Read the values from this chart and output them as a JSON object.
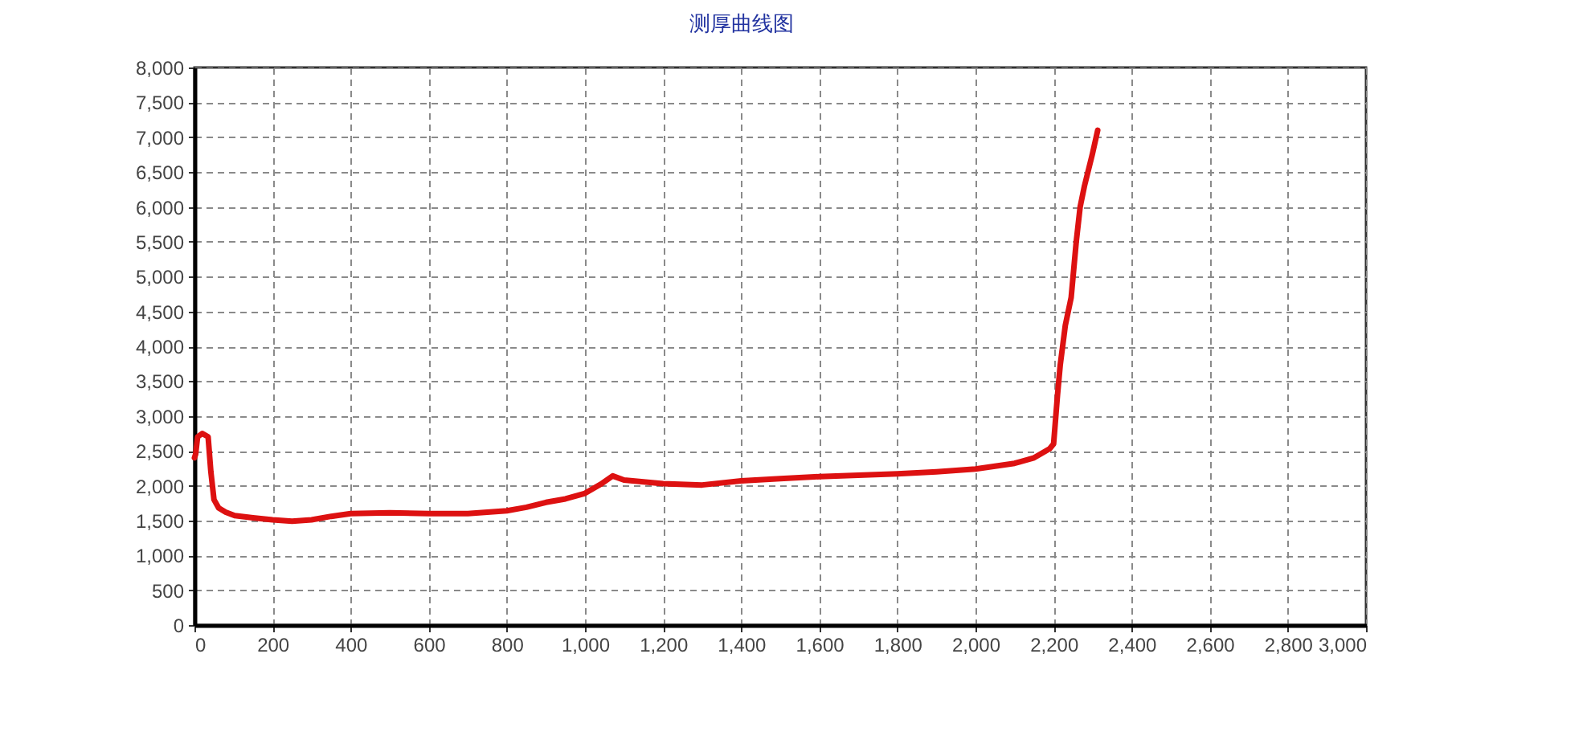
{
  "chart_data": {
    "type": "line",
    "title": "测厚曲线图",
    "x": [
      0,
      3,
      8,
      20,
      35,
      42,
      50,
      62,
      80,
      103,
      150,
      200,
      250,
      300,
      350,
      400,
      500,
      600,
      700,
      800,
      850,
      900,
      950,
      1000,
      1040,
      1071,
      1100,
      1200,
      1300,
      1400,
      1500,
      1600,
      1700,
      1800,
      1900,
      2000,
      2100,
      2150,
      2190,
      2200,
      2210,
      2217,
      2230,
      2245,
      2258,
      2268,
      2279,
      2299,
      2313
    ],
    "series": [
      {
        "color": "#dd1111",
        "values": [
          2400,
          2450,
          2700,
          2750,
          2700,
          2200,
          1800,
          1680,
          1620,
          1570,
          1540,
          1510,
          1490,
          1510,
          1560,
          1600,
          1610,
          1600,
          1600,
          1640,
          1690,
          1760,
          1810,
          1890,
          2020,
          2140,
          2080,
          2030,
          2010,
          2070,
          2100,
          2130,
          2150,
          2170,
          2200,
          2240,
          2320,
          2400,
          2530,
          2600,
          3300,
          3730,
          4300,
          4700,
          5500,
          6000,
          6300,
          6750,
          7100
        ]
      }
    ],
    "xlim": [
      0,
      3000
    ],
    "xticks": [
      0,
      200,
      400,
      600,
      800,
      {
        "value": 1000,
        "label": "1,000"
      },
      {
        "value": 1200,
        "label": "1,200"
      },
      {
        "value": 1400,
        "label": "1,400"
      },
      {
        "value": 1600,
        "label": "1,600"
      },
      {
        "value": 1800,
        "label": "1,800"
      },
      {
        "value": 2000,
        "label": "2,000"
      },
      {
        "value": 2200,
        "label": "2,200"
      },
      {
        "value": 2400,
        "label": "2,400"
      },
      {
        "value": 2600,
        "label": "2,600"
      },
      {
        "value": 2800,
        "label": "2,800"
      },
      {
        "value": 3000,
        "label": "3,000"
      }
    ],
    "ylim": [
      0,
      8000
    ],
    "yticks": [
      0,
      500,
      {
        "value": 1000,
        "label": "1,000"
      },
      {
        "value": 1500,
        "label": "1,500"
      },
      {
        "value": 2000,
        "label": "2,000"
      },
      {
        "value": 2500,
        "label": "2,500"
      },
      {
        "value": 3000,
        "label": "3,000"
      },
      {
        "value": 3500,
        "label": "3,500"
      },
      {
        "value": 4000,
        "label": "4,000"
      },
      {
        "value": 4500,
        "label": "4,500"
      },
      {
        "value": 5000,
        "label": "5,000"
      },
      {
        "value": 5500,
        "label": "5,500"
      },
      {
        "value": 6000,
        "label": "6,000"
      },
      {
        "value": 6500,
        "label": "6,500"
      },
      {
        "value": 7000,
        "label": "7,000"
      },
      {
        "value": 7500,
        "label": "7,500"
      },
      {
        "value": 8000,
        "label": "8,000"
      }
    ],
    "grid": true,
    "line_style": "solid"
  }
}
